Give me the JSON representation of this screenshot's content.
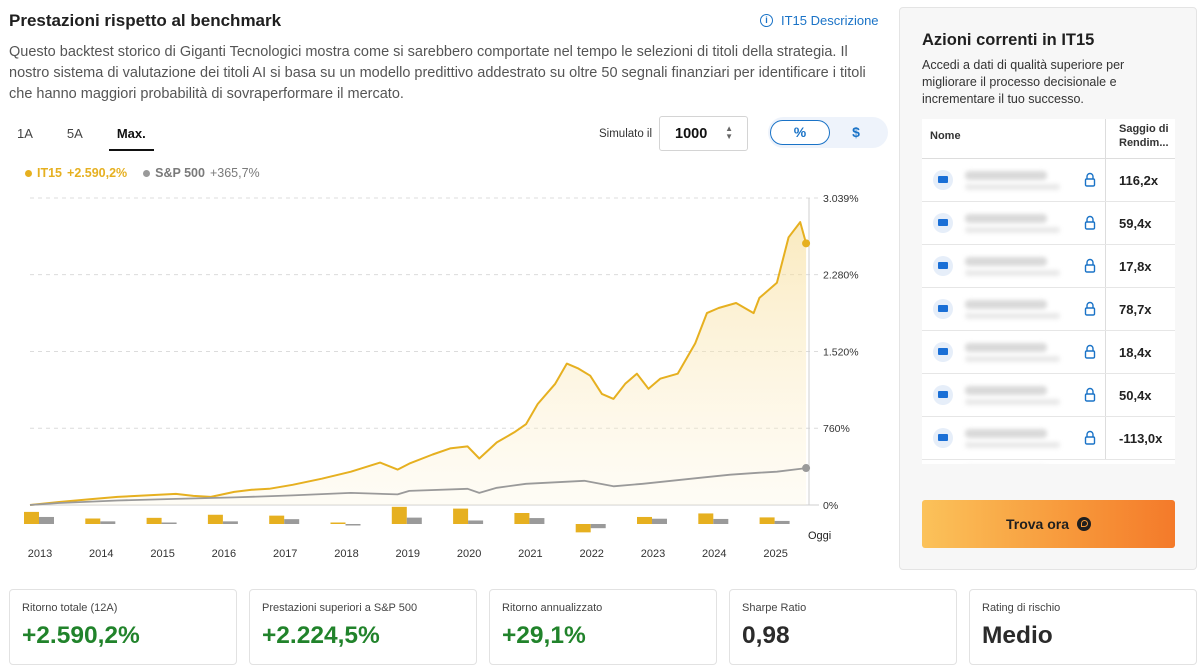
{
  "header": {
    "title": "Prestazioni rispetto al benchmark",
    "description_link": "IT15 Descrizione",
    "description": "Questo backtest storico di Giganti Tecnologici mostra come si sarebbero comportate nel tempo le selezioni di titoli della strategia. Il nostro sistema di valutazione dei titoli AI si basa su un modello predittivo addestrato su oltre 50 segnali finanziari per identificare i titoli che hanno maggiori probabilità di sovraperformare il mercato."
  },
  "controls": {
    "periods": [
      "1A",
      "5A",
      "Max."
    ],
    "active_period": "Max.",
    "simulated_label": "Simulato il",
    "simulated_value": "1000",
    "toggle": [
      "%",
      "$"
    ],
    "active_toggle": "%"
  },
  "legend": {
    "series1_name": "IT15",
    "series1_value": "+2.590,2%",
    "series2_name": "S&P 500",
    "series2_value": "+365,7%"
  },
  "chart_data": {
    "type": "line",
    "y_tick_labels": [
      "3.039%",
      "2.280%",
      "1.520%",
      "760%",
      "0%"
    ],
    "y_ticks": [
      3039,
      2280,
      1520,
      760,
      0
    ],
    "ylim": [
      0,
      3039
    ],
    "x_labels": [
      "2013",
      "2014",
      "2015",
      "2016",
      "2017",
      "2018",
      "2019",
      "2020",
      "2021",
      "2022",
      "2023",
      "2024",
      "2025"
    ],
    "today_label": "Oggi",
    "colors": {
      "it15": "#e6b020",
      "sp500": "#9a9a9a"
    },
    "series": [
      {
        "name": "IT15",
        "x": [
          2012.5,
          2013.0,
          2013.5,
          2014.0,
          2014.5,
          2015.0,
          2015.3,
          2015.6,
          2016.0,
          2016.3,
          2016.6,
          2017.0,
          2017.5,
          2018.0,
          2018.5,
          2018.8,
          2019.0,
          2019.4,
          2019.7,
          2020.0,
          2020.2,
          2020.5,
          2020.8,
          2021.0,
          2021.2,
          2021.5,
          2021.7,
          2021.9,
          2022.1,
          2022.3,
          2022.5,
          2022.7,
          2022.9,
          2023.1,
          2023.3,
          2023.6,
          2023.9,
          2024.1,
          2024.3,
          2024.6,
          2024.9,
          2025.0,
          2025.3,
          2025.5,
          2025.7,
          2025.8
        ],
        "values": [
          0,
          30,
          55,
          80,
          95,
          110,
          90,
          80,
          130,
          150,
          160,
          200,
          260,
          330,
          420,
          350,
          410,
          500,
          560,
          580,
          460,
          620,
          720,
          800,
          1000,
          1200,
          1400,
          1350,
          1280,
          1100,
          1050,
          1200,
          1300,
          1150,
          1250,
          1300,
          1600,
          1900,
          1950,
          2000,
          1900,
          2050,
          2200,
          2650,
          2800,
          2590
        ]
      },
      {
        "name": "S&P 500",
        "x": [
          2012.5,
          2013.0,
          2014.0,
          2015.0,
          2016.0,
          2017.0,
          2018.0,
          2018.8,
          2019.0,
          2020.0,
          2020.2,
          2020.5,
          2021.0,
          2022.0,
          2022.5,
          2023.0,
          2024.0,
          2024.5,
          2025.0,
          2025.3,
          2025.8
        ],
        "values": [
          0,
          20,
          45,
          60,
          75,
          95,
          120,
          105,
          140,
          160,
          120,
          170,
          210,
          240,
          185,
          210,
          270,
          300,
          320,
          330,
          365.7
        ]
      }
    ],
    "annual_returns": {
      "years": [
        "2013",
        "2014",
        "2015",
        "2016",
        "2017",
        "2018",
        "2019",
        "2020",
        "2021",
        "2022",
        "2023",
        "2024",
        "2025"
      ],
      "it15": [
        55,
        25,
        28,
        42,
        38,
        3,
        78,
        70,
        50,
        -38,
        32,
        48,
        30
      ],
      "sp500": [
        32,
        12,
        0,
        12,
        22,
        -5,
        29,
        16,
        27,
        -19,
        24,
        23,
        14
      ]
    }
  },
  "sidebar": {
    "title": "Azioni correnti in IT15",
    "subtitle": "Accedi a dati di qualità superiore per migliorare il processo decisionale e incrementare il tuo successo.",
    "col_name": "Nome",
    "col_return": "Saggio di Rendim...",
    "rows": [
      {
        "value": "116,2x"
      },
      {
        "value": "59,4x"
      },
      {
        "value": "17,8x"
      },
      {
        "value": "78,7x"
      },
      {
        "value": "18,4x"
      },
      {
        "value": "50,4x"
      },
      {
        "value": "-113,0x"
      }
    ],
    "cta_label": "Trova ora"
  },
  "stats": [
    {
      "label": "Ritorno totale (12A)",
      "value": "+2.590,2%",
      "tone": "pos"
    },
    {
      "label": "Prestazioni superiori a S&P 500",
      "value": "+2.224,5%",
      "tone": "pos"
    },
    {
      "label": "Ritorno annualizzato",
      "value": "+29,1%",
      "tone": "pos"
    },
    {
      "label": "Sharpe Ratio",
      "value": "0,98",
      "tone": "neu"
    },
    {
      "label": "Rating di rischio",
      "value": "Medio",
      "tone": "neu"
    }
  ]
}
